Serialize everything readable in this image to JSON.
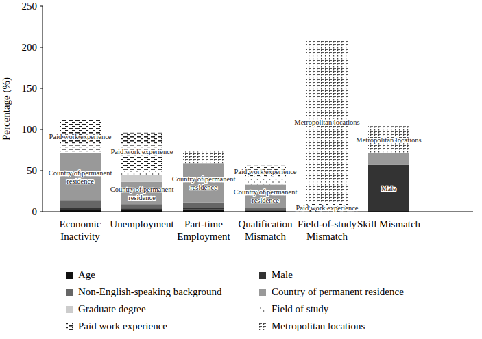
{
  "chart_data": {
    "type": "bar",
    "stacked": true,
    "legend": "bottom",
    "grid": false,
    "y_label": "Percentage (%)",
    "ylim": [
      0,
      250
    ],
    "yticks": [
      0,
      50,
      100,
      150,
      200,
      250
    ],
    "categories": [
      "Economic Inactivity",
      "Unemployment",
      "Part-time Employment",
      "Qualification Mismatch",
      "Field-of-study Mismatch",
      "Skill Mismatch"
    ],
    "series": [
      {
        "name": "Age",
        "color": "#111111",
        "values": [
          2,
          2,
          3,
          1,
          0,
          0
        ]
      },
      {
        "name": "Male",
        "color": "#333333",
        "values": [
          3,
          2,
          2,
          1,
          0,
          57
        ]
      },
      {
        "name": "Non-English-speaking background",
        "color": "#666666",
        "values": [
          9,
          5,
          6,
          3,
          0,
          0
        ]
      },
      {
        "name": "Country of permanent residence",
        "color": "#999999",
        "values": [
          57,
          27,
          48,
          28,
          0,
          14
        ]
      },
      {
        "name": "Graduate degree",
        "color": "#cccccc",
        "values": [
          0,
          9,
          0,
          0,
          0,
          0
        ]
      },
      {
        "name": "Field of study",
        "color": "#333333",
        "values": [
          0,
          6,
          0,
          10,
          0,
          0
        ]
      },
      {
        "name": "Paid work experience",
        "color": "#222222",
        "values": [
          41,
          45,
          0,
          13,
          10,
          0
        ]
      },
      {
        "name": "Metropolitan locations",
        "color": "#444444",
        "values": [
          0,
          0,
          14,
          0,
          198,
          33
        ]
      }
    ],
    "annotations": [
      {
        "text": "Paid work experience",
        "category": 0,
        "series": 6
      },
      {
        "text": "Country of permanent residence",
        "category": 0,
        "series": 3
      },
      {
        "text": "Paid work experience",
        "category": 1,
        "series": 6
      },
      {
        "text": "Country of permanent residence",
        "category": 1,
        "series": 3
      },
      {
        "text": "Country of permanent residence",
        "category": 2,
        "series": 3
      },
      {
        "text": "Paid work experience",
        "category": 3,
        "series": 6
      },
      {
        "text": "Country of permanent residence",
        "category": 3,
        "series": 3
      },
      {
        "text": "Metropolitan locations",
        "category": 4,
        "series": 7
      },
      {
        "text": "Paid work experience",
        "category": 4,
        "series": 6
      },
      {
        "text": "Metropolitan locations",
        "category": 5,
        "series": 7
      },
      {
        "text": "Male",
        "category": 5,
        "series": 1
      }
    ]
  }
}
